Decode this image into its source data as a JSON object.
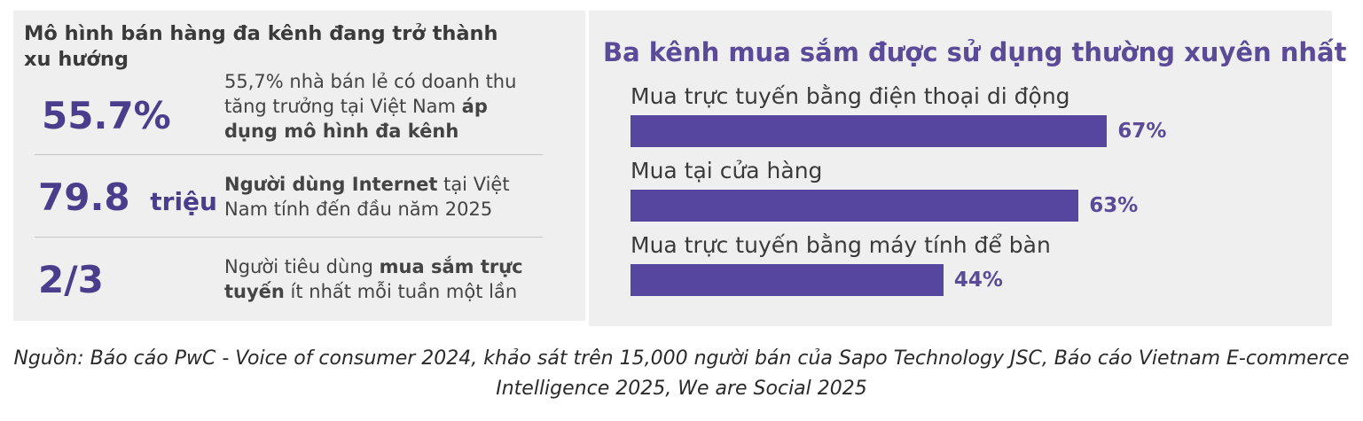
{
  "left_panel": {
    "title": "Mô hình bán hàng đa kênh đang trở thành xu hướng",
    "stats": [
      {
        "number": "55.7%",
        "unit": "",
        "desc_plain_before": "55,7% nhà bán lẻ có doanh thu tăng trưởng tại Việt Nam ",
        "desc_bold": "áp dụng mô hình đa kênh",
        "desc_plain_after": ""
      },
      {
        "number": "79.8",
        "unit": "triệu",
        "desc_plain_before": "",
        "desc_bold": "Người dùng Internet",
        "desc_plain_after": " tại Việt Nam tính đến đầu năm 2025"
      },
      {
        "number": "2/3",
        "unit": "",
        "desc_plain_before": "Người tiêu dùng ",
        "desc_bold": "mua sắm trực tuyến",
        "desc_plain_after": " ít nhất mỗi tuần một lần"
      }
    ]
  },
  "chart_data": {
    "type": "bar",
    "orientation": "horizontal",
    "title": "Ba kênh mua sắm được sử dụng thường xuyên nhất",
    "categories": [
      "Mua trực tuyến bằng điện thoại di động",
      "Mua tại cửa hàng",
      "Mua trực tuyến bằng máy tính để bàn"
    ],
    "values": [
      67,
      63,
      44
    ],
    "value_labels": [
      "67%",
      "63%",
      "44%"
    ],
    "xlim": [
      0,
      100
    ],
    "grid": false,
    "legend": "none",
    "bar_color": "#5646a0"
  },
  "source": "Nguồn: Báo cáo PwC - Voice of consumer 2024, khảo sát trên 15,000 người bán của Sapo Technology JSC, Báo cáo Vietnam E-commerce Intelligence 2025, We are Social 2025",
  "colors": {
    "accent": "#4a3e8c",
    "panel_bg": "#efefef"
  }
}
